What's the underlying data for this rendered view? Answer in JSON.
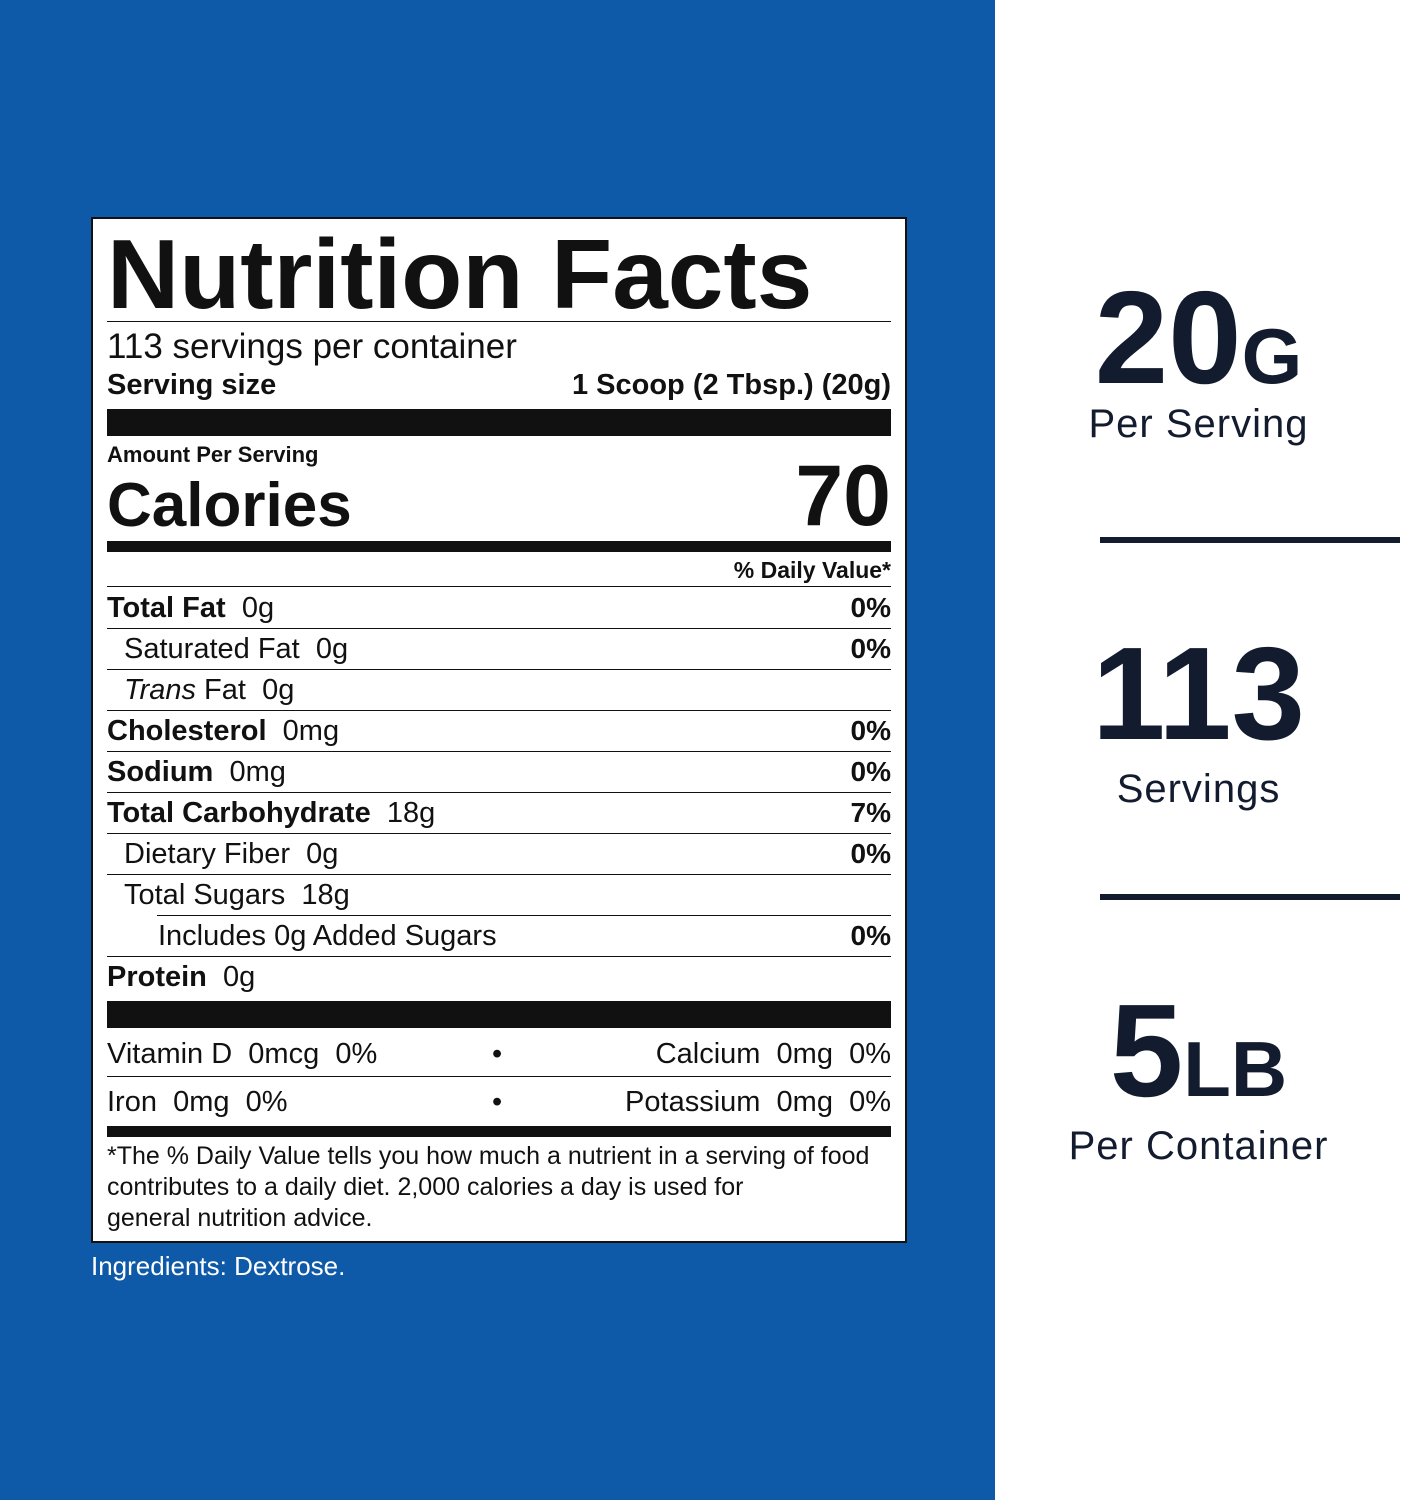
{
  "label": {
    "title": "Nutrition Facts",
    "servings_per_container": "113 servings per container",
    "serving_size_label": "Serving size",
    "serving_size_value": "1 Scoop (2 Tbsp.) (20g)",
    "amount_per_serving": "Amount Per Serving",
    "calories_label": "Calories",
    "calories_value": "70",
    "daily_value_header": "% Daily Value*",
    "nutrients": [
      {
        "name": "Total Fat",
        "amount": "0g",
        "dv": "0%"
      },
      {
        "name": "Saturated Fat",
        "amount": "0g",
        "dv": "0%"
      },
      {
        "name": "Trans",
        "name_rest": "Fat",
        "amount": "0g",
        "dv": ""
      },
      {
        "name": "Cholesterol",
        "amount": "0mg",
        "dv": "0%"
      },
      {
        "name": "Sodium",
        "amount": "0mg",
        "dv": "0%"
      },
      {
        "name": "Total Carbohydrate",
        "amount": "18g",
        "dv": "7%"
      },
      {
        "name": "Dietary Fiber",
        "amount": "0g",
        "dv": "0%"
      },
      {
        "name": "Total Sugars",
        "amount": "18g",
        "dv": ""
      },
      {
        "name": "Includes 0g Added Sugars",
        "amount": "",
        "dv": "0%"
      },
      {
        "name": "Protein",
        "amount": "0g",
        "dv": ""
      }
    ],
    "vitamins": [
      {
        "left": "Vitamin D  0mcg  0%",
        "right": "Calcium  0mg  0%"
      },
      {
        "left": "Iron  0mg  0%",
        "right": "Potassium  0mg  0%"
      }
    ],
    "bullet": "•",
    "footnote_line1": "*The % Daily Value tells you how much a nutrient in a serving of food",
    "footnote_line2": "contributes to a daily diet. 2,000 calories a day is used for",
    "footnote_line3": "general nutrition advice."
  },
  "ingredients": "Ingredients: Dextrose.",
  "stats": [
    {
      "big": "20",
      "unit": "G",
      "caption": "Per Serving"
    },
    {
      "big": "113",
      "unit": "",
      "caption": "Servings"
    },
    {
      "big": "5",
      "unit": "LB",
      "caption": "Per Container"
    }
  ],
  "colors": {
    "panel_blue": "#0e5aa8",
    "stat_navy": "#131b2e"
  }
}
